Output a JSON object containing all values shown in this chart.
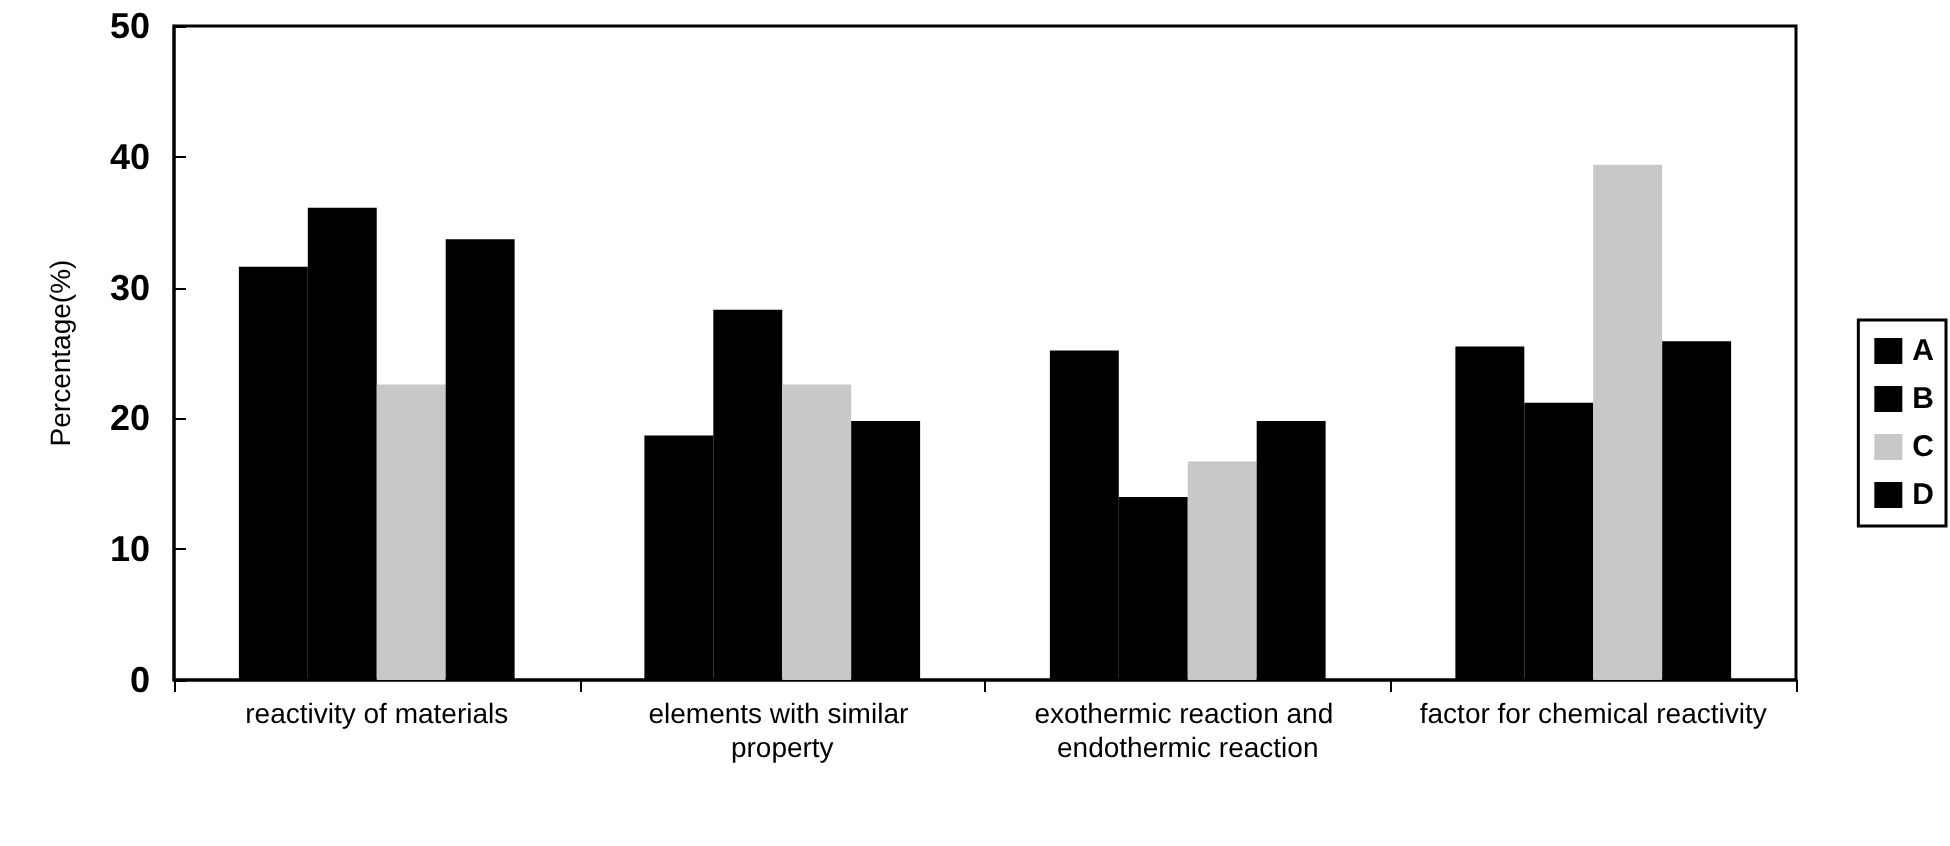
{
  "chart_data": {
    "type": "bar",
    "ylabel": "Percentage(%)",
    "categories": [
      "reactivity of materials",
      "elements with similar property",
      "exothermic reaction and endothermic reaction",
      "factor for chemical reactivity"
    ],
    "series": [
      {
        "name": "A",
        "color": "#000000",
        "values": [
          31.6,
          18.7,
          25.2,
          25.5
        ]
      },
      {
        "name": "B",
        "color": "#000000",
        "values": [
          36.1,
          28.3,
          14.0,
          21.2
        ]
      },
      {
        "name": "C",
        "color": "#c8c8c8",
        "values": [
          22.6,
          22.6,
          16.7,
          39.4
        ]
      },
      {
        "name": "D",
        "color": "#000000",
        "values": [
          33.7,
          19.8,
          19.8,
          25.9
        ]
      }
    ],
    "ylim": [
      0,
      50
    ],
    "yticks": [
      0,
      10,
      20,
      30,
      40,
      50
    ],
    "grid": false,
    "legend": "right"
  }
}
